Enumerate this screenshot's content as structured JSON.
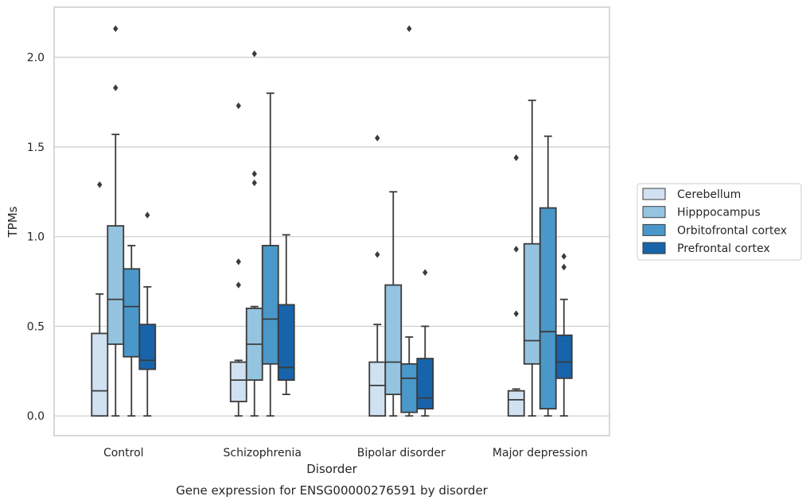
{
  "chart_data": {
    "type": "box",
    "title": "",
    "caption": "Gene expression for ENSG00000276591 by disorder",
    "xlabel": "Disorder",
    "ylabel": "TPMs",
    "ylim": [
      -0.11,
      2.28
    ],
    "yticks": [
      0.0,
      0.5,
      1.0,
      1.5,
      2.0
    ],
    "ytick_labels": [
      "0.0",
      "0.5",
      "1.0",
      "1.5",
      "2.0"
    ],
    "grid": "horizontal",
    "legend_position": "right",
    "categories": [
      "Control",
      "Schizophrenia",
      "Bipolar disorder",
      "Major depression"
    ],
    "series": [
      {
        "name": "Cerebellum",
        "color": "#d0e1f2",
        "boxes": [
          {
            "whisker_low": 0.0,
            "q1": 0.0,
            "median": 0.14,
            "q3": 0.46,
            "whisker_high": 0.68,
            "outliers": [
              1.29
            ]
          },
          {
            "whisker_low": 0.0,
            "q1": 0.08,
            "median": 0.2,
            "q3": 0.3,
            "whisker_high": 0.31,
            "outliers": [
              0.73,
              0.86,
              1.73
            ]
          },
          {
            "whisker_low": 0.0,
            "q1": 0.0,
            "median": 0.17,
            "q3": 0.3,
            "whisker_high": 0.51,
            "outliers": [
              0.9,
              1.55
            ]
          },
          {
            "whisker_low": 0.0,
            "q1": 0.0,
            "median": 0.09,
            "q3": 0.14,
            "whisker_high": 0.15,
            "outliers": [
              0.57,
              0.93,
              1.44
            ]
          }
        ]
      },
      {
        "name": "Hipppocampus",
        "color": "#94c4df",
        "boxes": [
          {
            "whisker_low": 0.0,
            "q1": 0.4,
            "median": 0.65,
            "q3": 1.06,
            "whisker_high": 1.57,
            "outliers": [
              1.83,
              2.16
            ]
          },
          {
            "whisker_low": 0.0,
            "q1": 0.2,
            "median": 0.4,
            "q3": 0.6,
            "whisker_high": 0.61,
            "outliers": [
              1.3,
              1.35,
              2.02
            ]
          },
          {
            "whisker_low": 0.0,
            "q1": 0.12,
            "median": 0.3,
            "q3": 0.73,
            "whisker_high": 1.25,
            "outliers": []
          },
          {
            "whisker_low": 0.0,
            "q1": 0.29,
            "median": 0.42,
            "q3": 0.96,
            "whisker_high": 1.76,
            "outliers": []
          }
        ]
      },
      {
        "name": "Orbitofrontal cortex",
        "color": "#4a98c9",
        "boxes": [
          {
            "whisker_low": 0.0,
            "q1": 0.33,
            "median": 0.61,
            "q3": 0.82,
            "whisker_high": 0.95,
            "outliers": []
          },
          {
            "whisker_low": 0.0,
            "q1": 0.29,
            "median": 0.54,
            "q3": 0.95,
            "whisker_high": 1.8,
            "outliers": []
          },
          {
            "whisker_low": 0.0,
            "q1": 0.02,
            "median": 0.21,
            "q3": 0.29,
            "whisker_high": 0.44,
            "outliers": [
              2.16
            ]
          },
          {
            "whisker_low": 0.0,
            "q1": 0.04,
            "median": 0.47,
            "q3": 1.16,
            "whisker_high": 1.56,
            "outliers": []
          }
        ]
      },
      {
        "name": "Prefrontal cortex",
        "color": "#1764ab",
        "boxes": [
          {
            "whisker_low": 0.0,
            "q1": 0.26,
            "median": 0.31,
            "q3": 0.51,
            "whisker_high": 0.72,
            "outliers": [
              1.12
            ]
          },
          {
            "whisker_low": 0.12,
            "q1": 0.2,
            "median": 0.27,
            "q3": 0.62,
            "whisker_high": 1.01,
            "outliers": []
          },
          {
            "whisker_low": 0.0,
            "q1": 0.04,
            "median": 0.1,
            "q3": 0.32,
            "whisker_high": 0.5,
            "outliers": [
              0.8
            ]
          },
          {
            "whisker_low": 0.0,
            "q1": 0.21,
            "median": 0.3,
            "q3": 0.45,
            "whisker_high": 0.65,
            "outliers": [
              0.83,
              0.89
            ]
          }
        ]
      }
    ]
  },
  "colors": {
    "line": "#3b3b3b",
    "grid": "#cccccc",
    "frame": "#cccccc"
  }
}
